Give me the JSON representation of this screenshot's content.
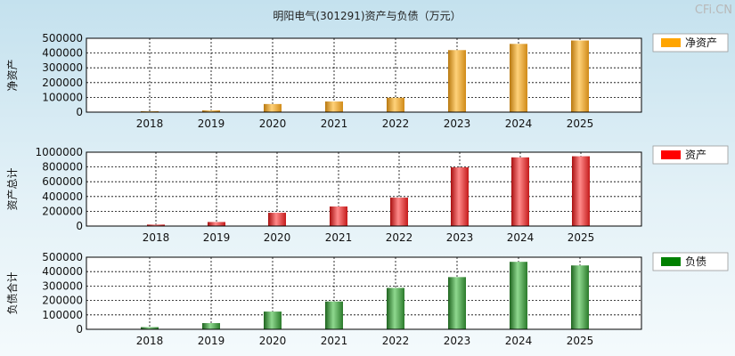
{
  "header": {
    "title": "明阳电气(301291)资产与负债（万元）",
    "watermark": "CFi.CN"
  },
  "colors": {
    "gold": "#f0a92c",
    "red": "#e12a2a",
    "green": "#2f8a2f",
    "legend_gold": "#ffa500",
    "legend_red": "#ff0000",
    "legend_green": "#008000"
  },
  "chart_data": [
    {
      "type": "bar",
      "title": "",
      "ylabel": "净资产",
      "categories": [
        "2018",
        "2019",
        "2020",
        "2021",
        "2022",
        "2023",
        "2024",
        "2025"
      ],
      "series": [
        {
          "name": "净资产",
          "values": [
            5000,
            12000,
            55000,
            72000,
            98000,
            420000,
            462000,
            485000
          ]
        }
      ],
      "yticks": [
        "500000",
        "400000",
        "300000",
        "200000",
        "100000",
        "0"
      ],
      "ylim": [
        0,
        500000
      ],
      "grid": true,
      "legend": "right"
    },
    {
      "type": "bar",
      "title": "",
      "ylabel": "资产总计",
      "categories": [
        "2018",
        "2019",
        "2020",
        "2021",
        "2022",
        "2023",
        "2024",
        "2025"
      ],
      "series": [
        {
          "name": "资产",
          "values": [
            20000,
            55000,
            180000,
            265000,
            385000,
            795000,
            930000,
            945000
          ]
        }
      ],
      "yticks": [
        "1000000",
        "800000",
        "600000",
        "400000",
        "200000",
        "0"
      ],
      "ylim": [
        0,
        1000000
      ],
      "grid": true,
      "legend": "right"
    },
    {
      "type": "bar",
      "title": "",
      "ylabel": "负债合计",
      "categories": [
        "2018",
        "2019",
        "2020",
        "2021",
        "2022",
        "2023",
        "2024",
        "2025"
      ],
      "series": [
        {
          "name": "负债",
          "values": [
            15000,
            43000,
            123000,
            193000,
            287000,
            362000,
            468000,
            443000
          ]
        }
      ],
      "yticks": [
        "500000",
        "400000",
        "300000",
        "200000",
        "100000",
        "0"
      ],
      "ylim": [
        0,
        500000
      ],
      "grid": true,
      "legend": "right"
    }
  ]
}
